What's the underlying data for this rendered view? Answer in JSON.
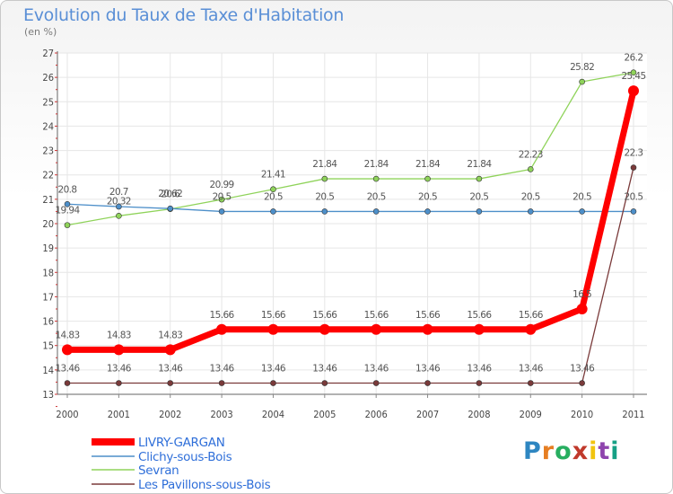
{
  "title": "Evolution du Taux de Taxe d'Habitation",
  "subtitle": "(en %)",
  "logo": {
    "text": "Proxiti",
    "colors": [
      "#2e86c1",
      "#e67e22",
      "#27ae60",
      "#c0392b",
      "#f1c40f",
      "#8e44ad",
      "#16a085"
    ]
  },
  "chart_data": {
    "type": "line",
    "title": "Evolution du Taux de Taxe d'Habitation",
    "ylabel": "(en %)",
    "x": [
      "2000",
      "2001",
      "2002",
      "2003",
      "2004",
      "2005",
      "2006",
      "2007",
      "2008",
      "2009",
      "2010",
      "2011"
    ],
    "ylim": [
      13,
      27
    ],
    "yticks": [
      13,
      14,
      15,
      16,
      17,
      18,
      19,
      20,
      21,
      22,
      23,
      24,
      25,
      26,
      27
    ],
    "grid": true,
    "legend_position": "bottom-left",
    "series": [
      {
        "name": "LIVRY-GARGAN",
        "color": "#ff0000",
        "values": [
          14.83,
          14.83,
          14.83,
          15.66,
          15.66,
          15.66,
          15.66,
          15.66,
          15.66,
          15.66,
          16.5,
          25.45
        ],
        "labels": [
          "14.83",
          "14.83",
          "14.83",
          "15.66",
          "15.66",
          "15.66",
          "15.66",
          "15.66",
          "15.66",
          "15.66",
          "16.5",
          "25.45"
        ]
      },
      {
        "name": "Clichy-sous-Bois",
        "color": "#4d8fc9",
        "values": [
          20.8,
          20.7,
          20.62,
          20.5,
          20.5,
          20.5,
          20.5,
          20.5,
          20.5,
          20.5,
          20.5,
          20.5
        ],
        "labels": [
          "20.8",
          "20.7",
          "20.62",
          "20.5",
          "20.5",
          "20.5",
          "20.5",
          "20.5",
          "20.5",
          "20.5",
          "20.5",
          "20.5"
        ]
      },
      {
        "name": "Sevran",
        "color": "#8fd35a",
        "values": [
          19.94,
          20.32,
          20.6,
          20.99,
          21.41,
          21.84,
          21.84,
          21.84,
          21.84,
          22.23,
          25.82,
          26.2
        ],
        "labels": [
          "19.94",
          "20.32",
          "20.6",
          "20.99",
          "21.41",
          "21.84",
          "21.84",
          "21.84",
          "21.84",
          "22.23",
          "25.82",
          "26.2"
        ]
      },
      {
        "name": "Les Pavillons-sous-Bois",
        "color": "#7a3a3a",
        "values": [
          13.46,
          13.46,
          13.46,
          13.46,
          13.46,
          13.46,
          13.46,
          13.46,
          13.46,
          13.46,
          13.46,
          22.3
        ],
        "labels": [
          "13.46",
          "13.46",
          "13.46",
          "13.46",
          "13.46",
          "13.46",
          "13.46",
          "13.46",
          "13.46",
          "13.46",
          "13.46",
          "22.3"
        ]
      }
    ]
  }
}
